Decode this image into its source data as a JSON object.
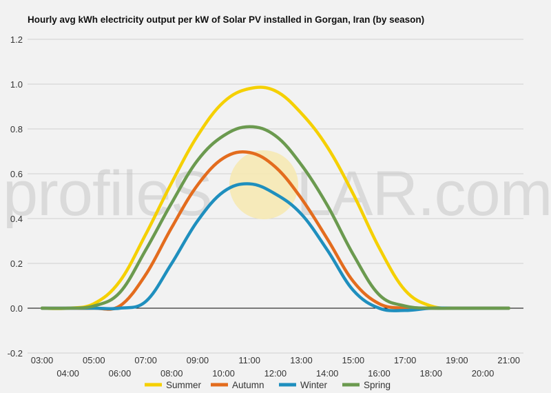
{
  "chart_data": {
    "type": "line",
    "title": "Hourly avg kWh electricity output per kW of Solar PV installed in Gorgan, Iran (by season)",
    "xlabel": "",
    "ylabel": "",
    "x": [
      "03:00",
      "04:00",
      "05:00",
      "06:00",
      "07:00",
      "08:00",
      "09:00",
      "10:00",
      "11:00",
      "12:00",
      "13:00",
      "14:00",
      "15:00",
      "16:00",
      "17:00",
      "18:00",
      "19:00",
      "20:00",
      "21:00"
    ],
    "ylim": [
      -0.2,
      1.2
    ],
    "yticks": [
      -0.2,
      0.0,
      0.2,
      0.4,
      0.6,
      0.8,
      1.0,
      1.2
    ],
    "grid": true,
    "legend_position": "bottom",
    "series": [
      {
        "name": "Summer",
        "color": "#f5d000",
        "values": [
          0,
          0,
          0.02,
          0.12,
          0.33,
          0.56,
          0.77,
          0.92,
          0.98,
          0.97,
          0.87,
          0.72,
          0.51,
          0.27,
          0.08,
          0.01,
          0,
          0,
          0
        ]
      },
      {
        "name": "Autumn",
        "color": "#e36c1e",
        "values": [
          0,
          0,
          0,
          0.01,
          0.15,
          0.36,
          0.55,
          0.67,
          0.695,
          0.63,
          0.49,
          0.31,
          0.12,
          0.02,
          0,
          0,
          0,
          0,
          0
        ]
      },
      {
        "name": "Winter",
        "color": "#1f8fbe",
        "values": [
          0,
          0,
          0,
          0,
          0.03,
          0.2,
          0.39,
          0.52,
          0.555,
          0.51,
          0.42,
          0.26,
          0.08,
          0,
          -0.01,
          0,
          0,
          0,
          0
        ]
      },
      {
        "name": "Spring",
        "color": "#6b9a4f",
        "values": [
          0,
          0,
          0.01,
          0.07,
          0.26,
          0.47,
          0.66,
          0.77,
          0.81,
          0.77,
          0.64,
          0.46,
          0.24,
          0.06,
          0.01,
          0,
          0,
          0,
          0
        ]
      }
    ],
    "watermark": {
      "left": "profileS",
      "right": "LAR.com"
    }
  }
}
